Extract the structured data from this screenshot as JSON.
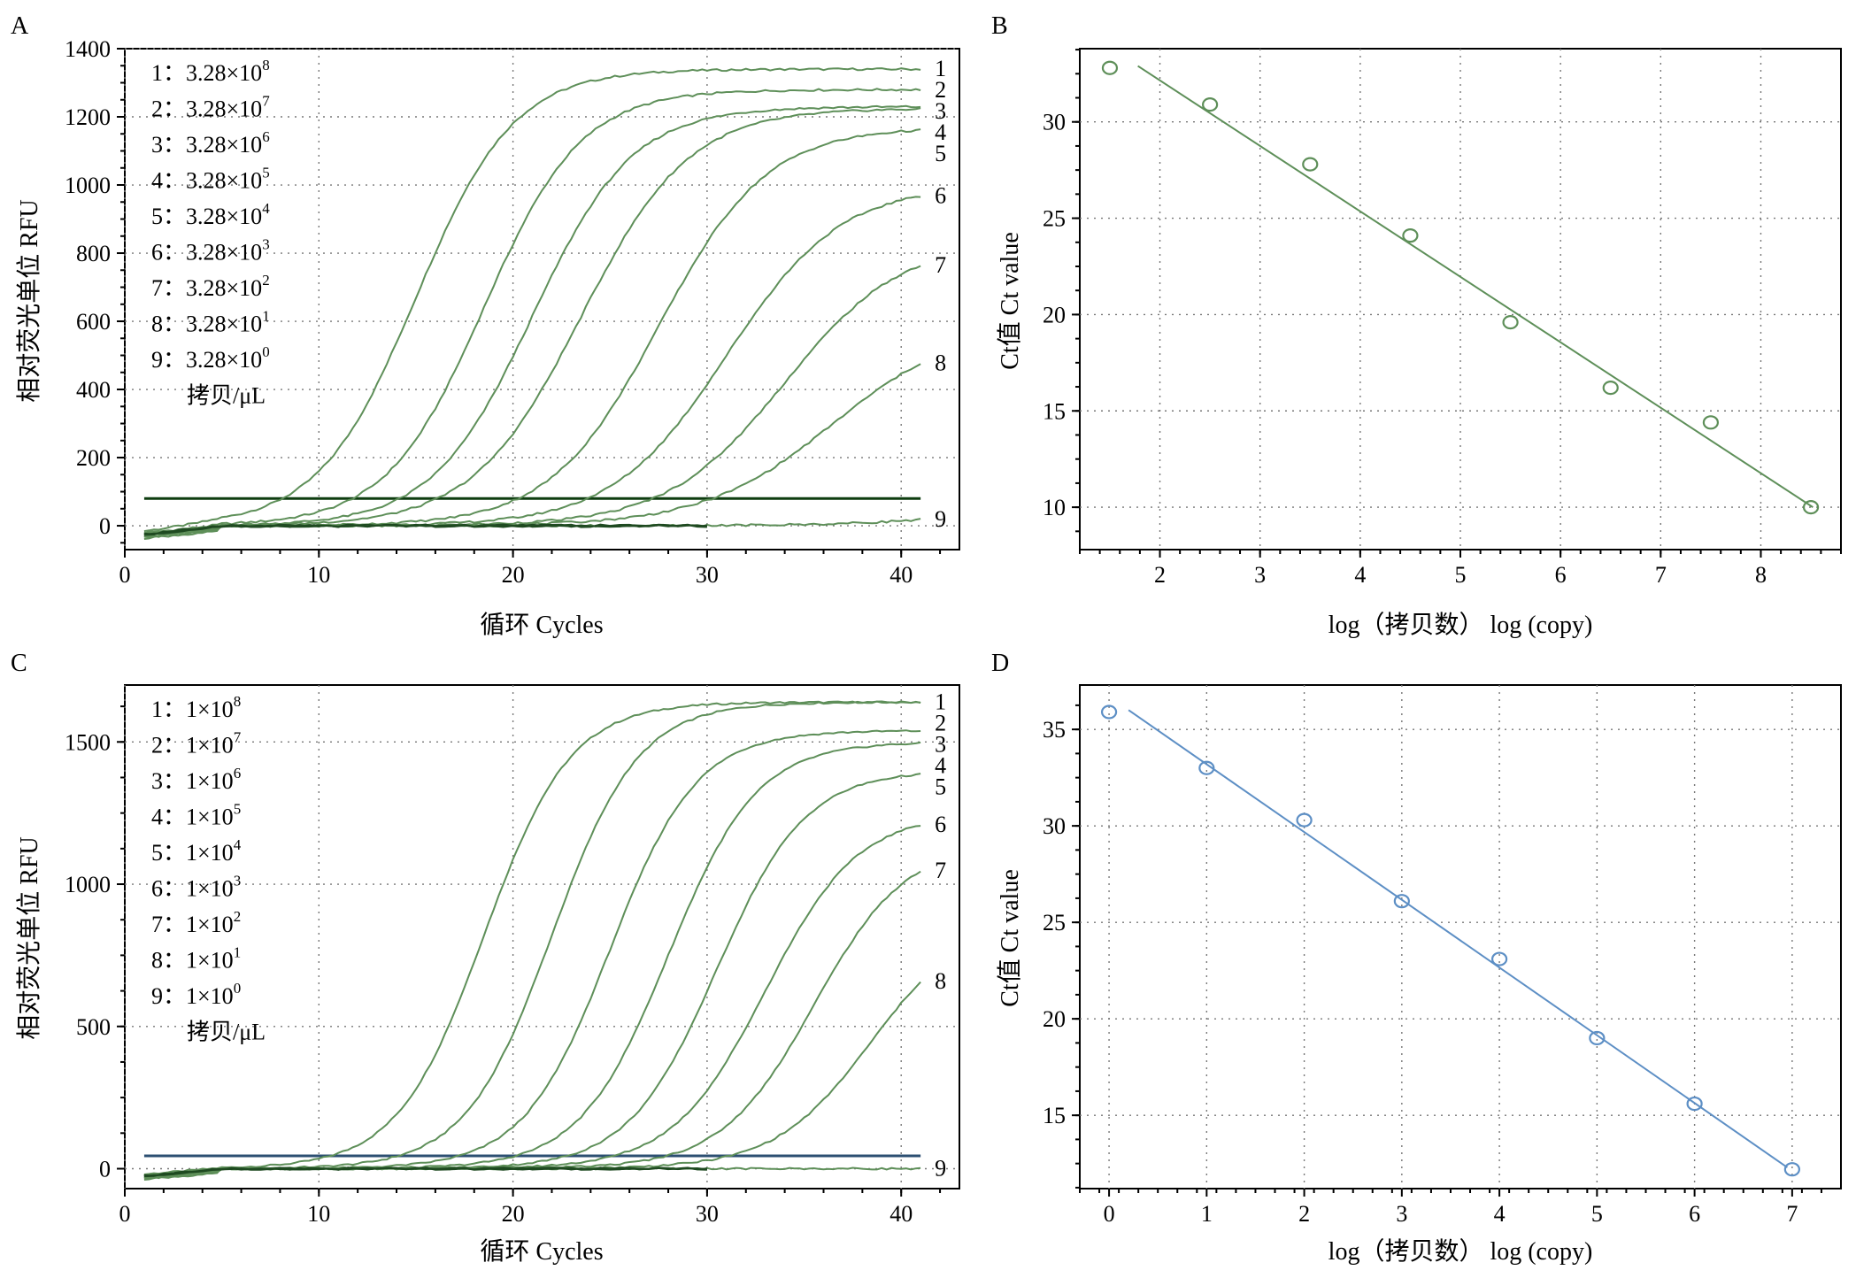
{
  "chart_data": [
    {
      "panel": "A",
      "type": "line",
      "xlabel": "循环 Cycles",
      "ylabel": "相对荧光单位 RFU",
      "xlim": [
        0,
        43
      ],
      "ylim": [
        -70,
        1400
      ],
      "xticks": [
        0,
        10,
        20,
        30,
        40
      ],
      "yticks": [
        0,
        200,
        400,
        600,
        800,
        1000,
        1200,
        1400
      ],
      "grid": true,
      "threshold": 80,
      "line_color": "#5e8f59",
      "threshold_color": "#0e3d10",
      "legend": [
        {
          "num": "1",
          "base": "3.28×10",
          "exp": "8"
        },
        {
          "num": "2",
          "base": "3.28×10",
          "exp": "7"
        },
        {
          "num": "3",
          "base": "3.28×10",
          "exp": "6"
        },
        {
          "num": "4",
          "base": "3.28×10",
          "exp": "5"
        },
        {
          "num": "5",
          "base": "3.28×10",
          "exp": "4"
        },
        {
          "num": "6",
          "base": "3.28×10",
          "exp": "3"
        },
        {
          "num": "7",
          "base": "3.28×10",
          "exp": "2"
        },
        {
          "num": "8",
          "base": "3.28×10",
          "exp": "1"
        },
        {
          "num": "9",
          "base": "3.28×10",
          "exp": "0"
        }
      ],
      "legend_unit": "拷贝/μL",
      "series": [
        {
          "name": "1",
          "ct": 15.0,
          "plateau": 1340,
          "k": 0.4,
          "end_label": "1"
        },
        {
          "name": "2",
          "ct": 18.5,
          "plateau": 1280,
          "k": 0.4,
          "end_label": "2"
        },
        {
          "name": "3",
          "ct": 21.0,
          "plateau": 1230,
          "k": 0.39,
          "end_label": "3"
        },
        {
          "name": "4",
          "ct": 23.5,
          "plateau": 1225,
          "k": 0.36,
          "end_label": "4"
        },
        {
          "name": "5",
          "ct": 27.5,
          "plateau": 1170,
          "k": 0.36,
          "end_label": "5"
        },
        {
          "name": "6",
          "ct": 31.0,
          "plateau": 1000,
          "k": 0.34,
          "end_label": "6"
        },
        {
          "name": "7",
          "ct": 34.0,
          "plateau": 840,
          "k": 0.33,
          "end_label": "7"
        },
        {
          "name": "8",
          "ct": 36.5,
          "plateau": 600,
          "k": 0.3,
          "end_label": "8"
        },
        {
          "name": "9",
          "ct": 45.0,
          "plateau": 80,
          "k": 0.3,
          "end_label": "9"
        }
      ]
    },
    {
      "panel": "B",
      "type": "scatter",
      "xlabel": "log（拷贝数） log (copy)",
      "ylabel": "Ct值 Ct value",
      "xlim": [
        1.2,
        8.8
      ],
      "ylim": [
        7.8,
        33.8
      ],
      "xticks": [
        2,
        3,
        4,
        5,
        6,
        7,
        8
      ],
      "yticks": [
        10,
        15,
        20,
        25,
        30
      ],
      "grid": true,
      "color": "#5e8f59",
      "points": [
        {
          "x": 1.5,
          "y": 32.8
        },
        {
          "x": 2.5,
          "y": 30.9
        },
        {
          "x": 3.5,
          "y": 27.8
        },
        {
          "x": 4.5,
          "y": 24.1
        },
        {
          "x": 5.5,
          "y": 19.6
        },
        {
          "x": 6.5,
          "y": 16.2
        },
        {
          "x": 7.5,
          "y": 14.4
        },
        {
          "x": 8.5,
          "y": 10.0
        }
      ],
      "fit_line": {
        "x": [
          1.78,
          8.52
        ],
        "y": [
          32.9,
          10.0
        ]
      }
    },
    {
      "panel": "C",
      "type": "line",
      "xlabel": "循环 Cycles",
      "ylabel": "相对荧光单位 RFU",
      "xlim": [
        0,
        43
      ],
      "ylim": [
        -70,
        1700
      ],
      "xticks": [
        0,
        10,
        20,
        30,
        40
      ],
      "yticks": [
        0,
        500,
        1000,
        1500
      ],
      "grid": true,
      "threshold": 45,
      "line_color": "#5e8f59",
      "threshold_color": "#2c4f72",
      "legend": [
        {
          "num": "1",
          "base": "1×10",
          "exp": "8"
        },
        {
          "num": "2",
          "base": "1×10",
          "exp": "7"
        },
        {
          "num": "3",
          "base": "1×10",
          "exp": "6"
        },
        {
          "num": "4",
          "base": "1×10",
          "exp": "5"
        },
        {
          "num": "5",
          "base": "1×10",
          "exp": "4"
        },
        {
          "num": "6",
          "base": "1×10",
          "exp": "3"
        },
        {
          "num": "7",
          "base": "1×10",
          "exp": "2"
        },
        {
          "num": "8",
          "base": "1×10",
          "exp": "1"
        },
        {
          "num": "9",
          "base": "1×10",
          "exp": "0"
        }
      ],
      "legend_unit": "拷贝/μL",
      "series": [
        {
          "name": "1",
          "ct": 18.5,
          "plateau": 1640,
          "k": 0.45,
          "end_label": "1"
        },
        {
          "name": "2",
          "ct": 22.0,
          "plateau": 1640,
          "k": 0.45,
          "end_label": "2"
        },
        {
          "name": "3",
          "ct": 25.0,
          "plateau": 1540,
          "k": 0.45,
          "end_label": "3"
        },
        {
          "name": "4",
          "ct": 28.0,
          "plateau": 1500,
          "k": 0.44,
          "end_label": "4"
        },
        {
          "name": "5",
          "ct": 30.5,
          "plateau": 1400,
          "k": 0.44,
          "end_label": "5"
        },
        {
          "name": "6",
          "ct": 33.0,
          "plateau": 1250,
          "k": 0.42,
          "end_label": "6"
        },
        {
          "name": "7",
          "ct": 35.5,
          "plateau": 1150,
          "k": 0.42,
          "end_label": "7"
        },
        {
          "name": "8",
          "ct": 38.5,
          "plateau": 900,
          "k": 0.4,
          "end_label": "8"
        },
        {
          "name": "9",
          "ct": 60.0,
          "plateau": 50,
          "k": 0.3,
          "end_label": "9"
        }
      ]
    },
    {
      "panel": "D",
      "type": "scatter",
      "xlabel": "log（拷贝数） log (copy)",
      "ylabel": "Ct值 Ct value",
      "xlim": [
        -0.3,
        7.5
      ],
      "ylim": [
        11.2,
        37.3
      ],
      "xticks": [
        0,
        1,
        2,
        3,
        4,
        5,
        6,
        7
      ],
      "yticks": [
        15,
        20,
        25,
        30,
        35
      ],
      "grid": true,
      "color": "#5d8fc5",
      "points": [
        {
          "x": 0,
          "y": 35.9
        },
        {
          "x": 1,
          "y": 33.0
        },
        {
          "x": 2,
          "y": 30.3
        },
        {
          "x": 3,
          "y": 26.1
        },
        {
          "x": 4,
          "y": 23.1
        },
        {
          "x": 5,
          "y": 19.0
        },
        {
          "x": 6,
          "y": 15.6
        },
        {
          "x": 7,
          "y": 12.2
        }
      ],
      "fit_line": {
        "x": [
          0.2,
          6.95
        ],
        "y": [
          36.0,
          12.3
        ]
      }
    }
  ]
}
